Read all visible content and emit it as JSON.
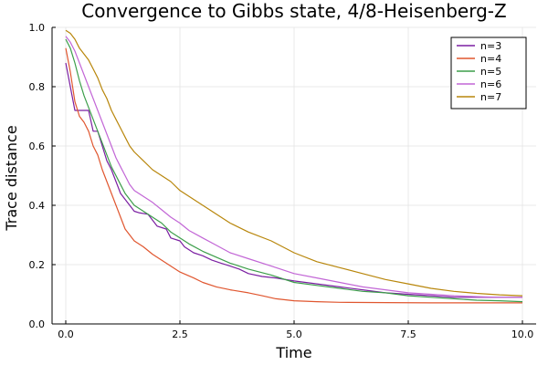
{
  "chart_data": {
    "type": "line",
    "title": "Convergence to Gibbs state, 4/8-Heisenberg-Z",
    "xlabel": "Time",
    "ylabel": "Trace distance",
    "xlim": [
      -0.3,
      10.3
    ],
    "ylim": [
      0.0,
      1.0
    ],
    "x_ticks": [
      0.0,
      2.5,
      5.0,
      7.5,
      10.0
    ],
    "x_tick_labels": [
      "0.0",
      "2.5",
      "5.0",
      "7.5",
      "10.0"
    ],
    "y_ticks": [
      0.0,
      0.2,
      0.4,
      0.6,
      0.8,
      1.0
    ],
    "y_tick_labels": [
      "0.0",
      "0.2",
      "0.4",
      "0.6",
      "0.8",
      "1.0"
    ],
    "grid": true,
    "legend_position": "top-right",
    "series": [
      {
        "name": "n=3",
        "color": "#7B1FA2",
        "points": [
          [
            0.0,
            0.88
          ],
          [
            0.1,
            0.8
          ],
          [
            0.2,
            0.72
          ],
          [
            0.5,
            0.72
          ],
          [
            0.6,
            0.65
          ],
          [
            0.7,
            0.65
          ],
          [
            0.8,
            0.6
          ],
          [
            0.9,
            0.55
          ],
          [
            1.0,
            0.52
          ],
          [
            1.1,
            0.48
          ],
          [
            1.2,
            0.44
          ],
          [
            1.4,
            0.4
          ],
          [
            1.5,
            0.38
          ],
          [
            1.6,
            0.375
          ],
          [
            1.8,
            0.37
          ],
          [
            1.9,
            0.35
          ],
          [
            2.0,
            0.33
          ],
          [
            2.2,
            0.32
          ],
          [
            2.3,
            0.29
          ],
          [
            2.5,
            0.28
          ],
          [
            2.6,
            0.26
          ],
          [
            2.8,
            0.24
          ],
          [
            3.0,
            0.23
          ],
          [
            3.2,
            0.215
          ],
          [
            3.4,
            0.205
          ],
          [
            3.6,
            0.195
          ],
          [
            3.8,
            0.185
          ],
          [
            4.0,
            0.17
          ],
          [
            4.3,
            0.16
          ],
          [
            4.6,
            0.155
          ],
          [
            5.0,
            0.145
          ],
          [
            5.5,
            0.135
          ],
          [
            6.0,
            0.125
          ],
          [
            6.5,
            0.115
          ],
          [
            7.0,
            0.105
          ],
          [
            7.5,
            0.1
          ],
          [
            8.0,
            0.095
          ],
          [
            8.5,
            0.09
          ],
          [
            9.0,
            0.09
          ],
          [
            9.5,
            0.09
          ],
          [
            10.0,
            0.09
          ]
        ]
      },
      {
        "name": "n=4",
        "color": "#E0562F",
        "points": [
          [
            0.0,
            0.93
          ],
          [
            0.1,
            0.85
          ],
          [
            0.2,
            0.75
          ],
          [
            0.3,
            0.7
          ],
          [
            0.4,
            0.68
          ],
          [
            0.5,
            0.65
          ],
          [
            0.6,
            0.6
          ],
          [
            0.7,
            0.57
          ],
          [
            0.8,
            0.52
          ],
          [
            0.9,
            0.48
          ],
          [
            1.0,
            0.44
          ],
          [
            1.1,
            0.4
          ],
          [
            1.2,
            0.36
          ],
          [
            1.3,
            0.32
          ],
          [
            1.4,
            0.3
          ],
          [
            1.5,
            0.28
          ],
          [
            1.7,
            0.26
          ],
          [
            1.9,
            0.235
          ],
          [
            2.1,
            0.215
          ],
          [
            2.3,
            0.195
          ],
          [
            2.5,
            0.175
          ],
          [
            2.8,
            0.155
          ],
          [
            3.0,
            0.14
          ],
          [
            3.3,
            0.125
          ],
          [
            3.6,
            0.115
          ],
          [
            4.0,
            0.105
          ],
          [
            4.3,
            0.095
          ],
          [
            4.6,
            0.085
          ],
          [
            5.0,
            0.078
          ],
          [
            5.5,
            0.075
          ],
          [
            6.0,
            0.073
          ],
          [
            7.0,
            0.072
          ],
          [
            8.0,
            0.071
          ],
          [
            9.0,
            0.071
          ],
          [
            10.0,
            0.071
          ]
        ]
      },
      {
        "name": "n=5",
        "color": "#3C9E4A",
        "points": [
          [
            0.0,
            0.96
          ],
          [
            0.1,
            0.93
          ],
          [
            0.2,
            0.88
          ],
          [
            0.3,
            0.82
          ],
          [
            0.4,
            0.77
          ],
          [
            0.5,
            0.73
          ],
          [
            0.6,
            0.69
          ],
          [
            0.7,
            0.65
          ],
          [
            0.8,
            0.61
          ],
          [
            0.9,
            0.57
          ],
          [
            1.0,
            0.53
          ],
          [
            1.1,
            0.5
          ],
          [
            1.2,
            0.47
          ],
          [
            1.3,
            0.44
          ],
          [
            1.4,
            0.42
          ],
          [
            1.5,
            0.4
          ],
          [
            1.7,
            0.38
          ],
          [
            1.9,
            0.36
          ],
          [
            2.1,
            0.34
          ],
          [
            2.3,
            0.31
          ],
          [
            2.5,
            0.29
          ],
          [
            2.7,
            0.27
          ],
          [
            3.0,
            0.245
          ],
          [
            3.3,
            0.225
          ],
          [
            3.6,
            0.205
          ],
          [
            4.0,
            0.185
          ],
          [
            4.5,
            0.165
          ],
          [
            5.0,
            0.14
          ],
          [
            5.5,
            0.13
          ],
          [
            6.0,
            0.12
          ],
          [
            6.5,
            0.11
          ],
          [
            7.0,
            0.105
          ],
          [
            7.5,
            0.095
          ],
          [
            8.0,
            0.09
          ],
          [
            8.5,
            0.085
          ],
          [
            9.0,
            0.08
          ],
          [
            9.5,
            0.078
          ],
          [
            10.0,
            0.075
          ]
        ]
      },
      {
        "name": "n=6",
        "color": "#C266D6",
        "points": [
          [
            0.0,
            0.97
          ],
          [
            0.1,
            0.95
          ],
          [
            0.2,
            0.92
          ],
          [
            0.3,
            0.88
          ],
          [
            0.4,
            0.84
          ],
          [
            0.5,
            0.8
          ],
          [
            0.6,
            0.76
          ],
          [
            0.7,
            0.72
          ],
          [
            0.8,
            0.68
          ],
          [
            0.9,
            0.64
          ],
          [
            1.0,
            0.6
          ],
          [
            1.1,
            0.56
          ],
          [
            1.2,
            0.53
          ],
          [
            1.3,
            0.5
          ],
          [
            1.4,
            0.47
          ],
          [
            1.5,
            0.45
          ],
          [
            1.7,
            0.43
          ],
          [
            1.9,
            0.41
          ],
          [
            2.1,
            0.385
          ],
          [
            2.3,
            0.36
          ],
          [
            2.5,
            0.34
          ],
          [
            2.7,
            0.315
          ],
          [
            3.0,
            0.29
          ],
          [
            3.3,
            0.265
          ],
          [
            3.6,
            0.24
          ],
          [
            4.0,
            0.22
          ],
          [
            4.5,
            0.195
          ],
          [
            5.0,
            0.17
          ],
          [
            5.5,
            0.155
          ],
          [
            6.0,
            0.14
          ],
          [
            6.5,
            0.125
          ],
          [
            7.0,
            0.115
          ],
          [
            7.5,
            0.105
          ],
          [
            8.0,
            0.1
          ],
          [
            8.5,
            0.095
          ],
          [
            9.0,
            0.092
          ],
          [
            9.5,
            0.09
          ],
          [
            10.0,
            0.09
          ]
        ]
      },
      {
        "name": "n=7",
        "color": "#B8860B",
        "points": [
          [
            0.0,
            0.99
          ],
          [
            0.1,
            0.98
          ],
          [
            0.2,
            0.96
          ],
          [
            0.3,
            0.93
          ],
          [
            0.4,
            0.91
          ],
          [
            0.5,
            0.89
          ],
          [
            0.6,
            0.86
          ],
          [
            0.7,
            0.83
          ],
          [
            0.8,
            0.79
          ],
          [
            0.9,
            0.76
          ],
          [
            1.0,
            0.72
          ],
          [
            1.1,
            0.69
          ],
          [
            1.2,
            0.66
          ],
          [
            1.3,
            0.63
          ],
          [
            1.4,
            0.6
          ],
          [
            1.5,
            0.58
          ],
          [
            1.7,
            0.55
          ],
          [
            1.9,
            0.52
          ],
          [
            2.1,
            0.5
          ],
          [
            2.3,
            0.48
          ],
          [
            2.5,
            0.45
          ],
          [
            2.7,
            0.43
          ],
          [
            3.0,
            0.4
          ],
          [
            3.3,
            0.37
          ],
          [
            3.6,
            0.34
          ],
          [
            4.0,
            0.31
          ],
          [
            4.5,
            0.28
          ],
          [
            5.0,
            0.24
          ],
          [
            5.5,
            0.21
          ],
          [
            6.0,
            0.19
          ],
          [
            6.5,
            0.17
          ],
          [
            7.0,
            0.15
          ],
          [
            7.5,
            0.135
          ],
          [
            8.0,
            0.12
          ],
          [
            8.5,
            0.11
          ],
          [
            9.0,
            0.103
          ],
          [
            9.5,
            0.098
          ],
          [
            10.0,
            0.095
          ]
        ]
      }
    ]
  }
}
